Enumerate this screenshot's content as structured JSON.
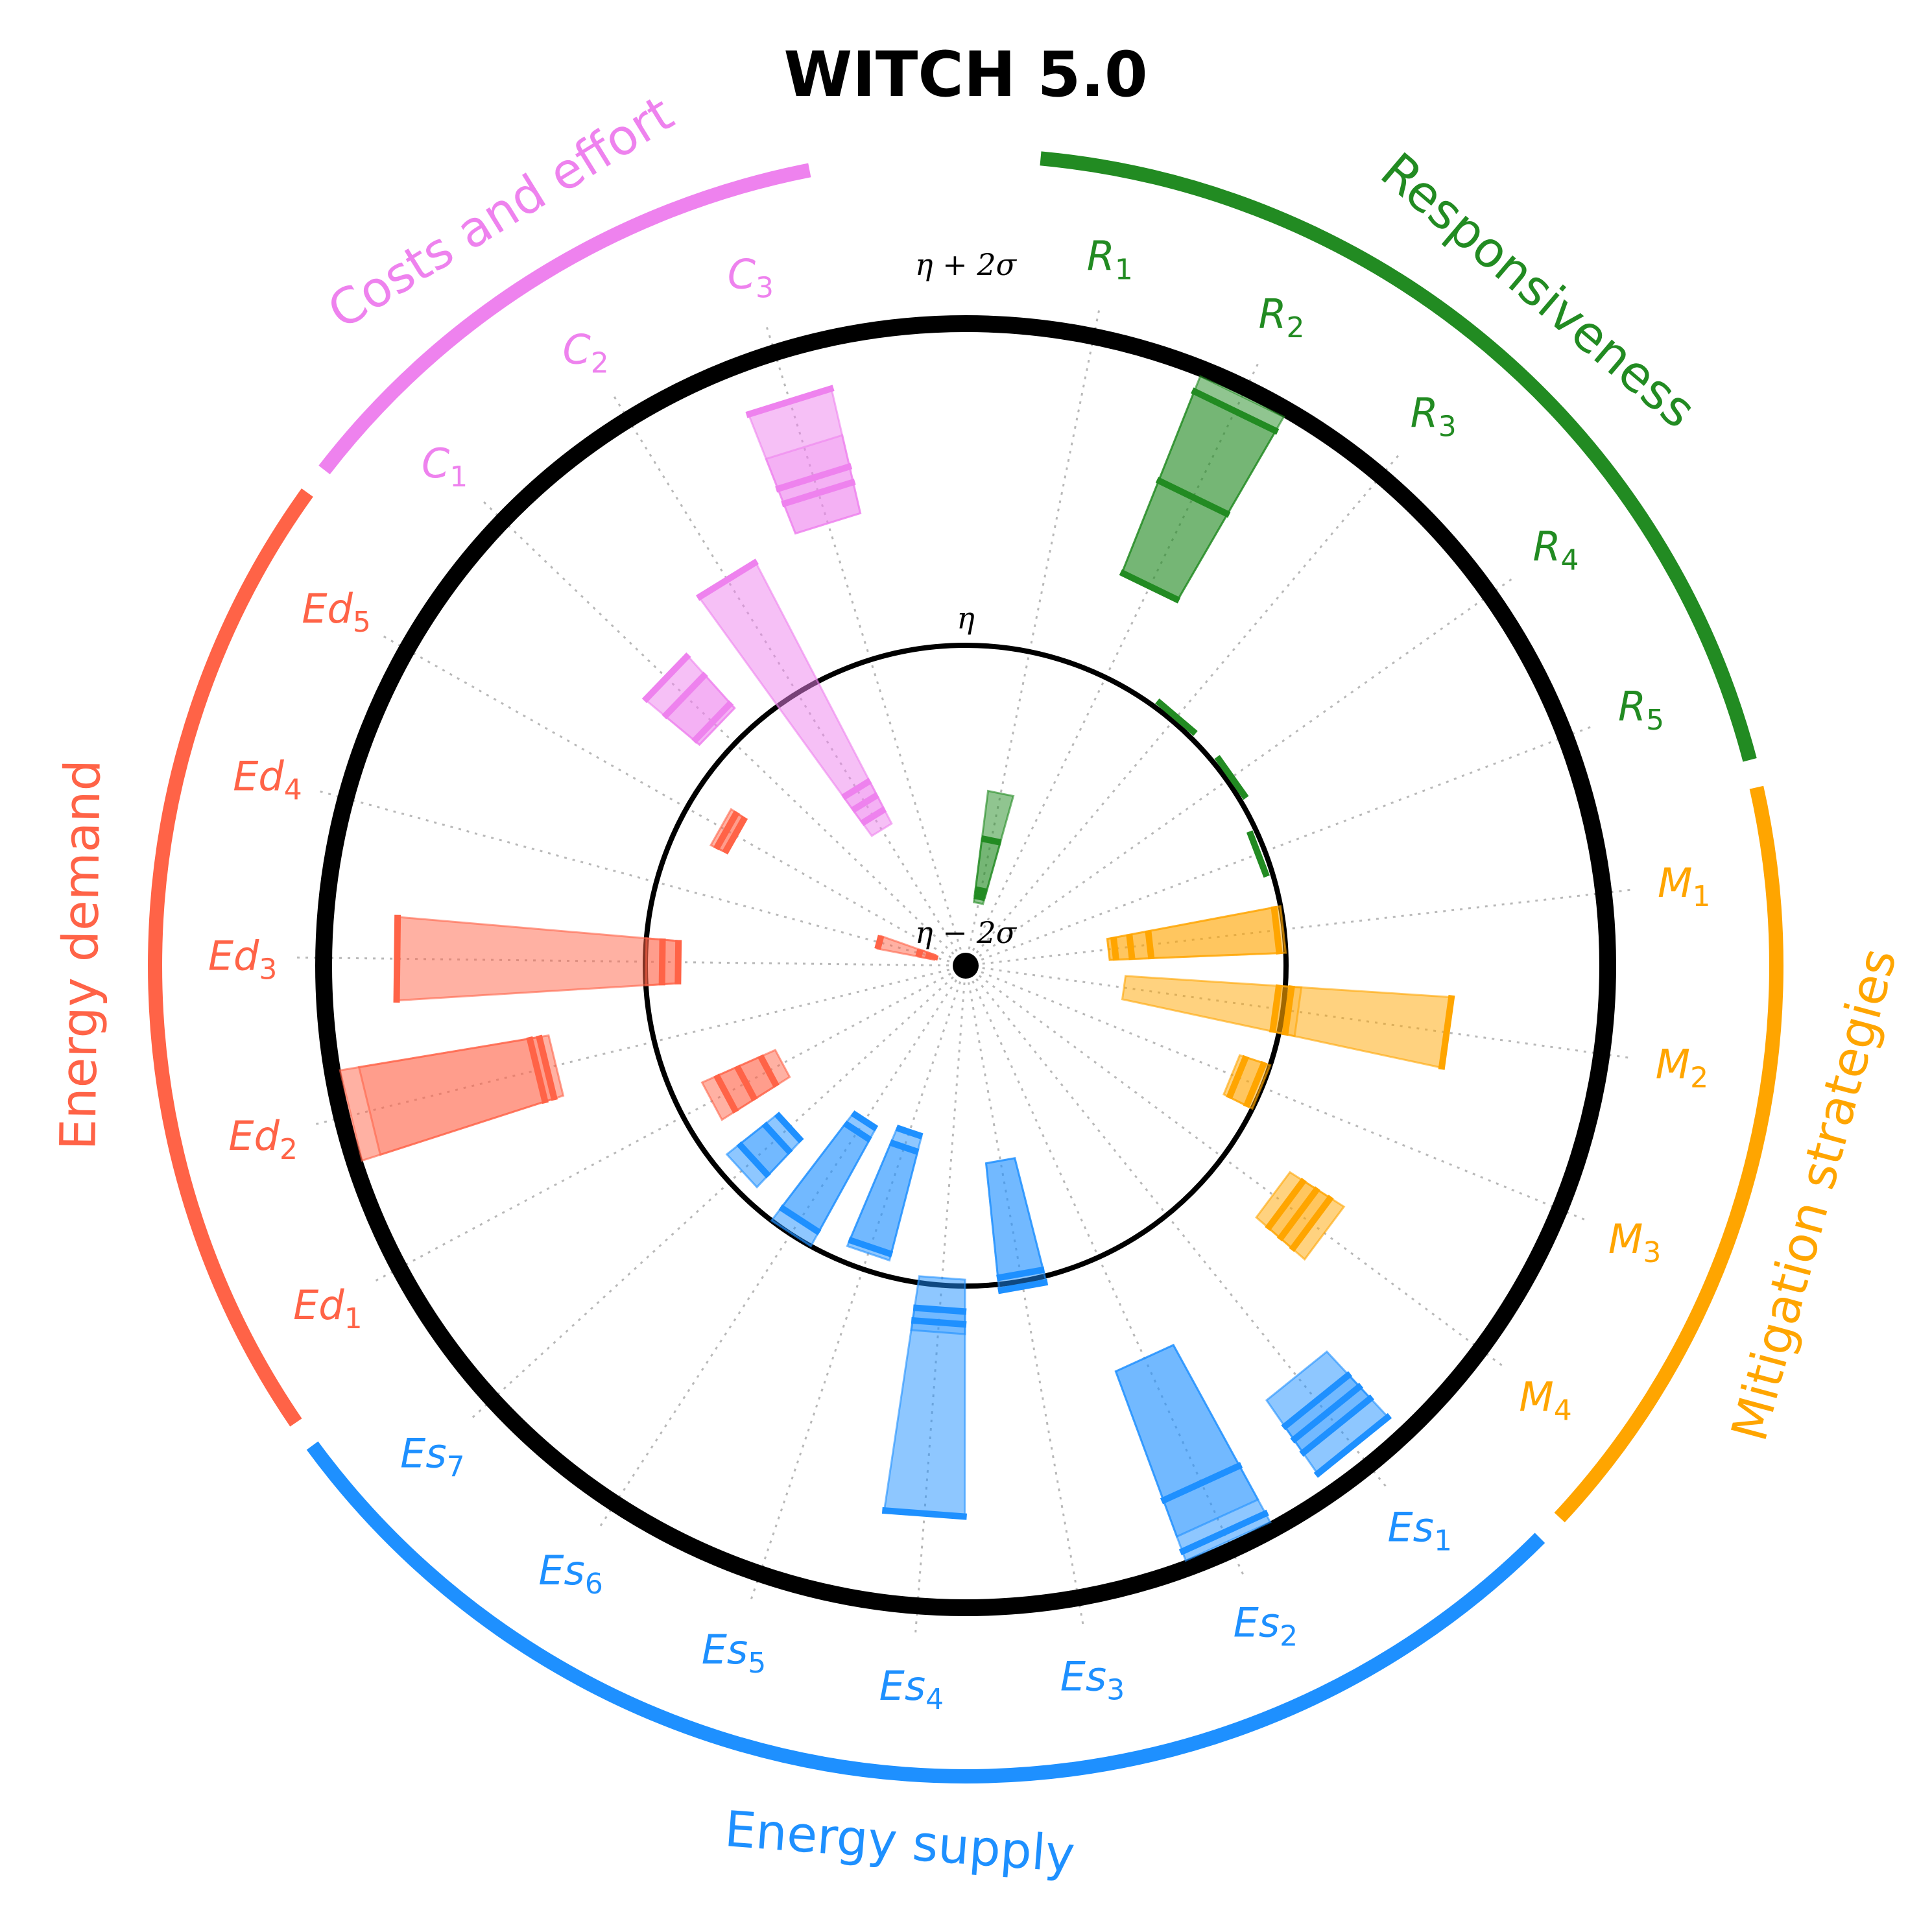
{
  "chart_data": {
    "type": "polar-bar",
    "title": "WITCH 5.0",
    "reference_circles": {
      "inner": "η − 2σ",
      "middle": "η",
      "outer": "η + 2σ"
    },
    "groups": [
      {
        "name": "Responsiveness",
        "color": "#228b22",
        "indicators": [
          {
            "base": "R",
            "sub": "1",
            "low": 0.2,
            "band_low": 0.22,
            "band_high": 0.4,
            "high": 0.55,
            "marks": [
              0.22,
              0.24,
              0.4
            ]
          },
          {
            "base": "R",
            "sub": "2",
            "low": 1.32,
            "band_low": 1.32,
            "band_high": 1.93,
            "high": 1.98,
            "marks": [
              1.32,
              1.63,
              1.93
            ]
          },
          {
            "base": "R",
            "sub": "3",
            "low": 1.02,
            "band_low": 1.02,
            "band_high": 1.02,
            "high": 1.02,
            "marks": [
              1.02
            ]
          },
          {
            "base": "R",
            "sub": "4",
            "low": 1.02,
            "band_low": 1.02,
            "band_high": 1.02,
            "high": 1.02,
            "marks": [
              1.02
            ]
          },
          {
            "base": "R",
            "sub": "5",
            "low": 0.98,
            "band_low": 0.98,
            "band_high": 0.98,
            "high": 0.98,
            "marks": [
              0.98
            ]
          }
        ]
      },
      {
        "name": "Mitigation strategies",
        "color": "#ffa500",
        "indicators": [
          {
            "base": "M",
            "sub": "1",
            "low": 0.45,
            "band_low": 0.45,
            "band_high": 0.98,
            "high": 1.0,
            "marks": [
              0.47,
              0.52,
              0.58,
              0.98
            ]
          },
          {
            "base": "M",
            "sub": "2",
            "low": 0.5,
            "band_low": 0.98,
            "band_high": 1.05,
            "high": 1.52,
            "marks": [
              0.98,
              1.02,
              1.52
            ]
          },
          {
            "base": "M",
            "sub": "3",
            "low": 0.9,
            "band_low": 0.92,
            "band_high": 0.98,
            "high": 1.0,
            "marks": [
              0.92,
              0.98
            ]
          },
          {
            "base": "M",
            "sub": "4",
            "low": 1.2,
            "band_low": 1.25,
            "band_high": 1.35,
            "high": 1.4,
            "marks": [
              1.25,
              1.3,
              1.35
            ]
          }
        ]
      },
      {
        "name": "Energy supply",
        "color": "#1e90ff",
        "indicators": [
          {
            "base": "Es",
            "sub": "1",
            "low": 1.65,
            "band_low": 1.75,
            "band_high": 1.85,
            "high": 1.93,
            "marks": [
              1.75,
              1.8,
              1.85,
              1.93
            ]
          },
          {
            "base": "Es",
            "sub": "2",
            "low": 1.35,
            "band_low": 1.35,
            "band_high": 1.9,
            "high": 1.98,
            "marks": [
              1.78,
              1.95
            ]
          },
          {
            "base": "Es",
            "sub": "3",
            "low": 0.62,
            "band_low": 0.62,
            "band_high": 0.98,
            "high": 1.02,
            "marks": [
              0.98,
              1.02
            ]
          },
          {
            "base": "Es",
            "sub": "4",
            "low": 0.98,
            "band_low": 1.08,
            "band_high": 1.15,
            "high": 1.72,
            "marks": [
              1.08,
              1.12,
              1.72
            ]
          },
          {
            "base": "Es",
            "sub": "5",
            "low": 0.55,
            "band_low": 0.6,
            "band_high": 0.93,
            "high": 0.95,
            "marks": [
              0.55,
              0.6,
              0.93
            ]
          },
          {
            "base": "Es",
            "sub": "6",
            "low": 0.58,
            "band_low": 0.62,
            "band_high": 0.95,
            "high": 1.0,
            "marks": [
              0.58,
              0.62,
              0.95
            ]
          },
          {
            "base": "Es",
            "sub": "7",
            "low": 0.75,
            "band_low": 0.8,
            "band_high": 0.9,
            "high": 0.95,
            "marks": [
              0.75,
              0.8,
              0.9
            ]
          }
        ]
      },
      {
        "name": "Energy demand",
        "color": "#ff6347",
        "indicators": [
          {
            "base": "Ed",
            "sub": "1",
            "low": 0.65,
            "band_low": 0.7,
            "band_high": 0.85,
            "high": 0.9,
            "marks": [
              0.7,
              0.78,
              0.85
            ]
          },
          {
            "base": "Ed",
            "sub": "2",
            "low": 1.32,
            "band_low": 1.35,
            "band_high": 1.92,
            "high": 1.98,
            "marks": [
              1.35,
              1.38
            ]
          },
          {
            "base": "Ed",
            "sub": "3",
            "low": 0.9,
            "band_low": 0.9,
            "band_high": 1.0,
            "high": 1.78,
            "marks": [
              0.9,
              0.95,
              1.78
            ]
          },
          {
            "base": "Ed",
            "sub": "4",
            "low": 0.1,
            "band_low": 0.1,
            "band_high": 0.15,
            "high": 0.28,
            "marks": [
              0.1,
              0.12,
              0.15,
              0.28
            ]
          },
          {
            "base": "Ed",
            "sub": "5",
            "low": 0.83,
            "band_low": 0.83,
            "band_high": 0.86,
            "high": 0.88,
            "marks": [
              0.83,
              0.86
            ]
          }
        ]
      },
      {
        "name": "Costs and effort",
        "color": "#ee82ee",
        "indicators": [
          {
            "base": "C",
            "sub": "1",
            "low": 1.08,
            "band_low": 1.08,
            "band_high": 1.22,
            "high": 1.3,
            "marks": [
              1.1,
              1.22,
              1.3
            ]
          },
          {
            "base": "C",
            "sub": "2",
            "low": 0.5,
            "band_low": 0.55,
            "band_high": 0.65,
            "high": 1.42,
            "marks": [
              0.55,
              0.6,
              0.65,
              1.42
            ]
          },
          {
            "base": "C",
            "sub": "3",
            "low": 1.45,
            "band_low": 1.45,
            "band_high": 1.7,
            "high": 1.85,
            "marks": [
              1.55,
              1.6,
              1.85
            ]
          }
        ]
      }
    ],
    "grid": true,
    "rmax": 2
  }
}
